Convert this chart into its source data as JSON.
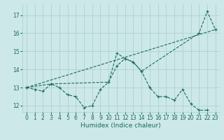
{
  "title": "",
  "xlabel": "Humidex (Indice chaleur)",
  "bg_color": "#cce8e8",
  "line_color": "#1a6b5e",
  "grid_color": "#aacccc",
  "xlim": [
    -0.5,
    23.5
  ],
  "ylim": [
    11.65,
    17.6
  ],
  "yticks": [
    12,
    13,
    14,
    15,
    16,
    17
  ],
  "xticks": [
    0,
    1,
    2,
    3,
    4,
    5,
    6,
    7,
    8,
    9,
    10,
    11,
    12,
    13,
    14,
    15,
    16,
    17,
    18,
    19,
    20,
    21,
    22,
    23
  ],
  "line1_x": [
    0,
    1,
    2,
    3,
    4,
    5,
    6,
    7,
    8,
    9,
    10,
    11,
    12,
    13,
    14,
    15,
    16,
    17,
    18,
    19,
    20,
    21,
    22
  ],
  "line1_y": [
    13.0,
    12.9,
    12.8,
    13.2,
    13.0,
    12.6,
    12.5,
    11.9,
    12.0,
    12.9,
    13.3,
    14.2,
    14.6,
    14.4,
    13.9,
    13.0,
    12.5,
    12.5,
    12.3,
    12.9,
    12.1,
    11.75,
    11.75
  ],
  "line2_x": [
    0,
    3,
    10,
    11,
    12,
    13,
    14,
    21,
    22,
    23
  ],
  "line2_y": [
    13.0,
    13.2,
    13.3,
    14.9,
    14.6,
    14.4,
    13.9,
    16.0,
    17.2,
    16.2
  ],
  "line3_x": [
    0,
    23
  ],
  "line3_y": [
    13.0,
    16.2
  ],
  "tick_fontsize": 5.5,
  "xlabel_fontsize": 6.5,
  "marker_size": 3,
  "line_width": 0.8
}
